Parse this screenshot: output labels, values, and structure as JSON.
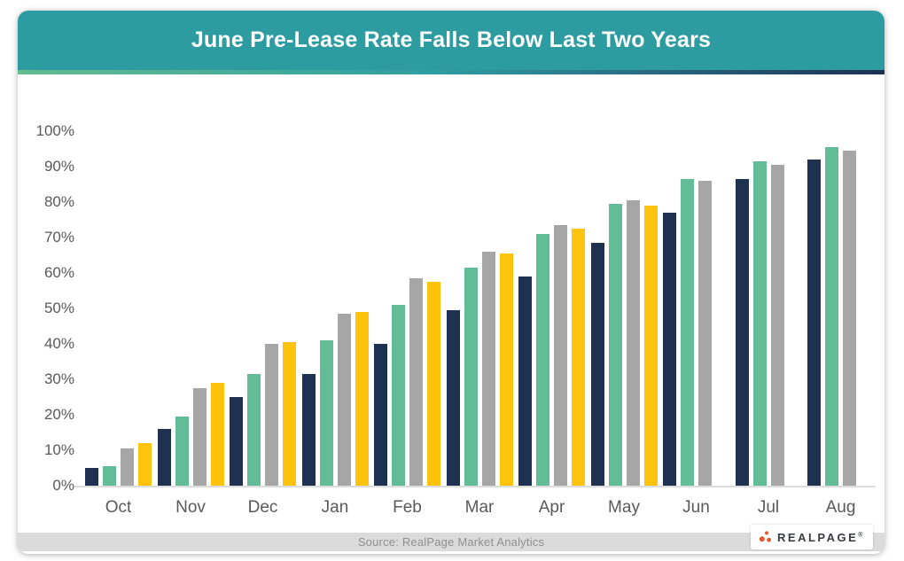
{
  "header": {
    "title": "June Pre-Lease Rate Falls Below Last Two Years"
  },
  "colors": {
    "header_bg": "#2D9CA1",
    "accent_gradient_left": "#65BC8F",
    "accent_gradient_mid": "#2F9EA2",
    "accent_gradient_right": "#1E3151",
    "navy": "#1E3151",
    "teal": "#63BC98",
    "gray": "#A6A6A6",
    "yellow": "#FFC20D",
    "axis_text": "#595959",
    "baseline": "#DCDCDC",
    "footer_bg": "#DBDBDB",
    "footer_text": "#8F8F8F",
    "logo_dot": "#E8552F",
    "logo_text": "#363B42"
  },
  "chart_data": {
    "type": "bar",
    "title": "June Pre-Lease Rate Falls Below Last Two Years",
    "categories": [
      "Oct",
      "Nov",
      "Dec",
      "Jan",
      "Feb",
      "Mar",
      "Apr",
      "May",
      "Jun",
      "Jul",
      "Aug"
    ],
    "series": [
      {
        "name": "navy",
        "color": "#1E3151",
        "values": [
          5,
          16,
          25,
          31.5,
          40,
          49.5,
          59,
          68.5,
          77,
          86.5,
          92
        ]
      },
      {
        "name": "teal",
        "color": "#63BC98",
        "values": [
          5.5,
          19.5,
          31.5,
          41,
          51,
          61.5,
          71,
          79.5,
          86.5,
          91.5,
          95.5
        ]
      },
      {
        "name": "gray",
        "color": "#A6A6A6",
        "values": [
          10.5,
          27.5,
          40,
          48.5,
          58.5,
          66,
          73.5,
          80.5,
          86,
          90.5,
          94.5
        ]
      },
      {
        "name": "yellow",
        "color": "#FFC20D",
        "values": [
          12,
          29,
          40.5,
          49,
          57.5,
          65.5,
          72.5,
          79,
          null,
          null,
          null
        ]
      }
    ],
    "xlabel": "",
    "ylabel": "",
    "y_ticks": [
      "0%",
      "10%",
      "20%",
      "30%",
      "40%",
      "50%",
      "60%",
      "70%",
      "80%",
      "90%",
      "100%"
    ],
    "ylim": [
      0,
      100
    ],
    "grid": false,
    "legend": "none"
  },
  "footer": {
    "source_label": "Source: RealPage Market Analytics",
    "logo_text": "REALPAGE",
    "logo_reg": "®"
  }
}
